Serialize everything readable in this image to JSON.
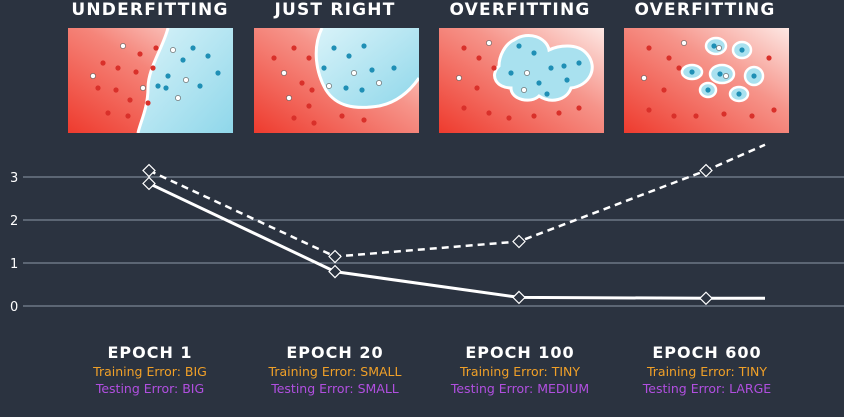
{
  "panels": [
    {
      "title": "UNDERFITTING",
      "epoch": "EPOCH 1",
      "training_error": "Training Error: BIG",
      "testing_error": "Testing Error: BIG"
    },
    {
      "title": "JUST RIGHT",
      "epoch": "EPOCH 20",
      "training_error": "Training Error: SMALL",
      "testing_error": "Testing Error: SMALL"
    },
    {
      "title": "OVERFITTING",
      "epoch": "EPOCH 100",
      "training_error": "Training Error: TINY",
      "testing_error": "Testing Error: MEDIUM"
    },
    {
      "title": "OVERFITTING",
      "epoch": "EPOCH 600",
      "training_error": "Training Error: TINY",
      "testing_error": "Testing Error: LARGE"
    }
  ],
  "colors": {
    "background": "#2b3340",
    "red_region": "#f0554a",
    "blue_region": "#a9e1ef",
    "training_label": "#f0a028",
    "testing_label": "#b14fe0",
    "curves": "#ffffff"
  },
  "chart_data": {
    "type": "line",
    "x": [
      1,
      20,
      100,
      600
    ],
    "yticks": [
      0,
      1,
      2,
      3
    ],
    "ylim": [
      0,
      3.4
    ],
    "grid": true,
    "series": [
      {
        "style": "solid",
        "values": [
          2.85,
          0.8,
          0.2,
          0.18
        ]
      },
      {
        "style": "dashed",
        "values": [
          3.15,
          1.15,
          1.5,
          3.15
        ]
      }
    ]
  }
}
